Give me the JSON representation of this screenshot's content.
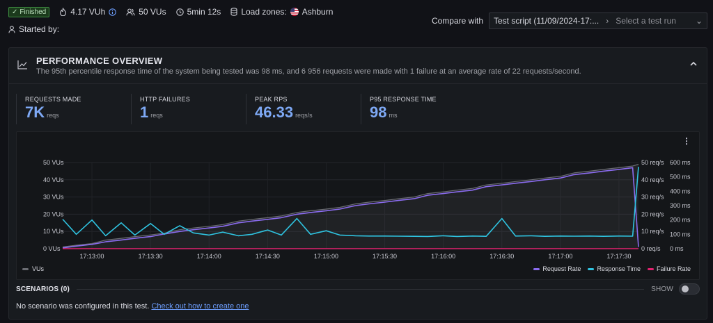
{
  "status": {
    "badge": "Finished",
    "vuh": "4.17 VUh",
    "vus": "50 VUs",
    "duration": "5min 12s",
    "load_zones_label": "Load zones:",
    "zone": "Ashburn"
  },
  "started_by": "Started by:",
  "compare": {
    "label": "Compare with",
    "value": "Test script (11/09/2024-17:...",
    "placeholder": "Select a test run"
  },
  "panel": {
    "title": "PERFORMANCE OVERVIEW",
    "subtitle": "The 95th percentile response time of the system being tested was 98 ms, and 6 956 requests were made with 1 failure at an average rate of 22 requests/second."
  },
  "stats": [
    {
      "label": "REQUESTS MADE",
      "value": "7K",
      "unit": "reqs"
    },
    {
      "label": "HTTP FAILURES",
      "value": "1",
      "unit": "reqs"
    },
    {
      "label": "PEAK RPS",
      "value": "46.33",
      "unit": "reqs/s"
    },
    {
      "label": "P95 RESPONSE TIME",
      "value": "98",
      "unit": "ms"
    }
  ],
  "legend": {
    "vus": "VUs",
    "request_rate": "Request Rate",
    "response_time": "Response Time",
    "failure_rate": "Failure Rate"
  },
  "scenarios": {
    "title": "SCENARIOS (0)",
    "show": "SHOW",
    "empty_text": "No scenario was configured in this test.",
    "link": "Check out how to create one"
  },
  "colors": {
    "vus": "#6b6d73",
    "request_rate": "#8b6cf0",
    "response_time": "#2fc3e0",
    "failure_rate": "#e0226e",
    "accent": "#7ea9f5"
  },
  "chart_data": {
    "type": "line",
    "x": [
      "17:12:45",
      "17:12:52",
      "17:13:00",
      "17:13:07",
      "17:13:15",
      "17:13:22",
      "17:13:30",
      "17:13:37",
      "17:13:45",
      "17:13:52",
      "17:14:00",
      "17:14:07",
      "17:14:15",
      "17:14:22",
      "17:14:30",
      "17:14:37",
      "17:14:45",
      "17:14:52",
      "17:15:00",
      "17:15:07",
      "17:15:15",
      "17:15:22",
      "17:15:30",
      "17:15:37",
      "17:15:45",
      "17:15:52",
      "17:16:00",
      "17:16:07",
      "17:16:15",
      "17:16:22",
      "17:16:30",
      "17:16:37",
      "17:16:45",
      "17:16:52",
      "17:17:00",
      "17:17:07",
      "17:17:15",
      "17:17:22",
      "17:17:30",
      "17:17:37",
      "17:17:40"
    ],
    "x_ticks": [
      "17:13:00",
      "17:13:30",
      "17:14:00",
      "17:14:30",
      "17:15:00",
      "17:15:30",
      "17:16:00",
      "17:16:30",
      "17:17:00",
      "17:17:30"
    ],
    "y_left": {
      "label": "VUs",
      "ticks": [
        "0 VUs",
        "10 VUs",
        "20 VUs",
        "30 VUs",
        "40 VUs",
        "50 VUs"
      ],
      "ylim": [
        0,
        50
      ]
    },
    "y_right_rps": {
      "ticks": [
        "0 req/s",
        "10 req/s",
        "20 req/s",
        "30 req/s",
        "40 req/s",
        "50 req/s"
      ],
      "ylim": [
        0,
        50
      ]
    },
    "y_right_ms": {
      "ticks": [
        "0 ms",
        "100 ms",
        "200 ms",
        "300 ms",
        "400 ms",
        "500 ms",
        "600 ms"
      ],
      "ylim": [
        0,
        600
      ]
    },
    "series": [
      {
        "name": "VUs",
        "axis": "left",
        "values": [
          1,
          2,
          3,
          5,
          6,
          7,
          8,
          9,
          11,
          12,
          13,
          14,
          16,
          17,
          18,
          19,
          21,
          22,
          23,
          24,
          26,
          27,
          28,
          29,
          30,
          32,
          33,
          34,
          35,
          37,
          38,
          39,
          40,
          41,
          42,
          44,
          45,
          46,
          47,
          48,
          49
        ]
      },
      {
        "name": "Request Rate",
        "axis": "rps",
        "values": [
          0.5,
          1.5,
          2.5,
          4,
          5,
          6,
          7,
          8.5,
          10,
          11,
          12,
          13,
          15,
          16,
          17,
          18,
          20,
          21,
          22,
          23,
          25,
          26,
          27,
          28,
          29,
          31,
          32,
          33,
          34,
          36,
          37,
          38,
          39,
          40,
          41,
          43,
          44,
          45,
          46,
          47,
          1
        ]
      },
      {
        "name": "Response Time",
        "axis": "ms",
        "values": [
          205,
          100,
          200,
          90,
          180,
          95,
          175,
          100,
          160,
          110,
          95,
          115,
          90,
          100,
          130,
          95,
          210,
          100,
          125,
          95,
          90,
          88,
          88,
          87,
          86,
          85,
          90,
          85,
          88,
          86,
          210,
          88,
          90,
          86,
          88,
          87,
          88,
          86,
          88,
          87,
          570
        ]
      },
      {
        "name": "Failure Rate",
        "axis": "rps",
        "values": [
          0,
          0,
          0,
          0,
          0,
          0,
          0,
          0,
          0,
          0,
          0,
          0,
          0,
          0,
          0,
          0,
          0,
          0,
          0,
          0,
          0,
          0,
          0,
          0,
          0,
          0,
          0,
          0,
          0,
          0,
          0,
          0,
          0,
          0,
          0,
          0,
          0,
          0,
          0,
          0,
          0
        ]
      }
    ]
  }
}
